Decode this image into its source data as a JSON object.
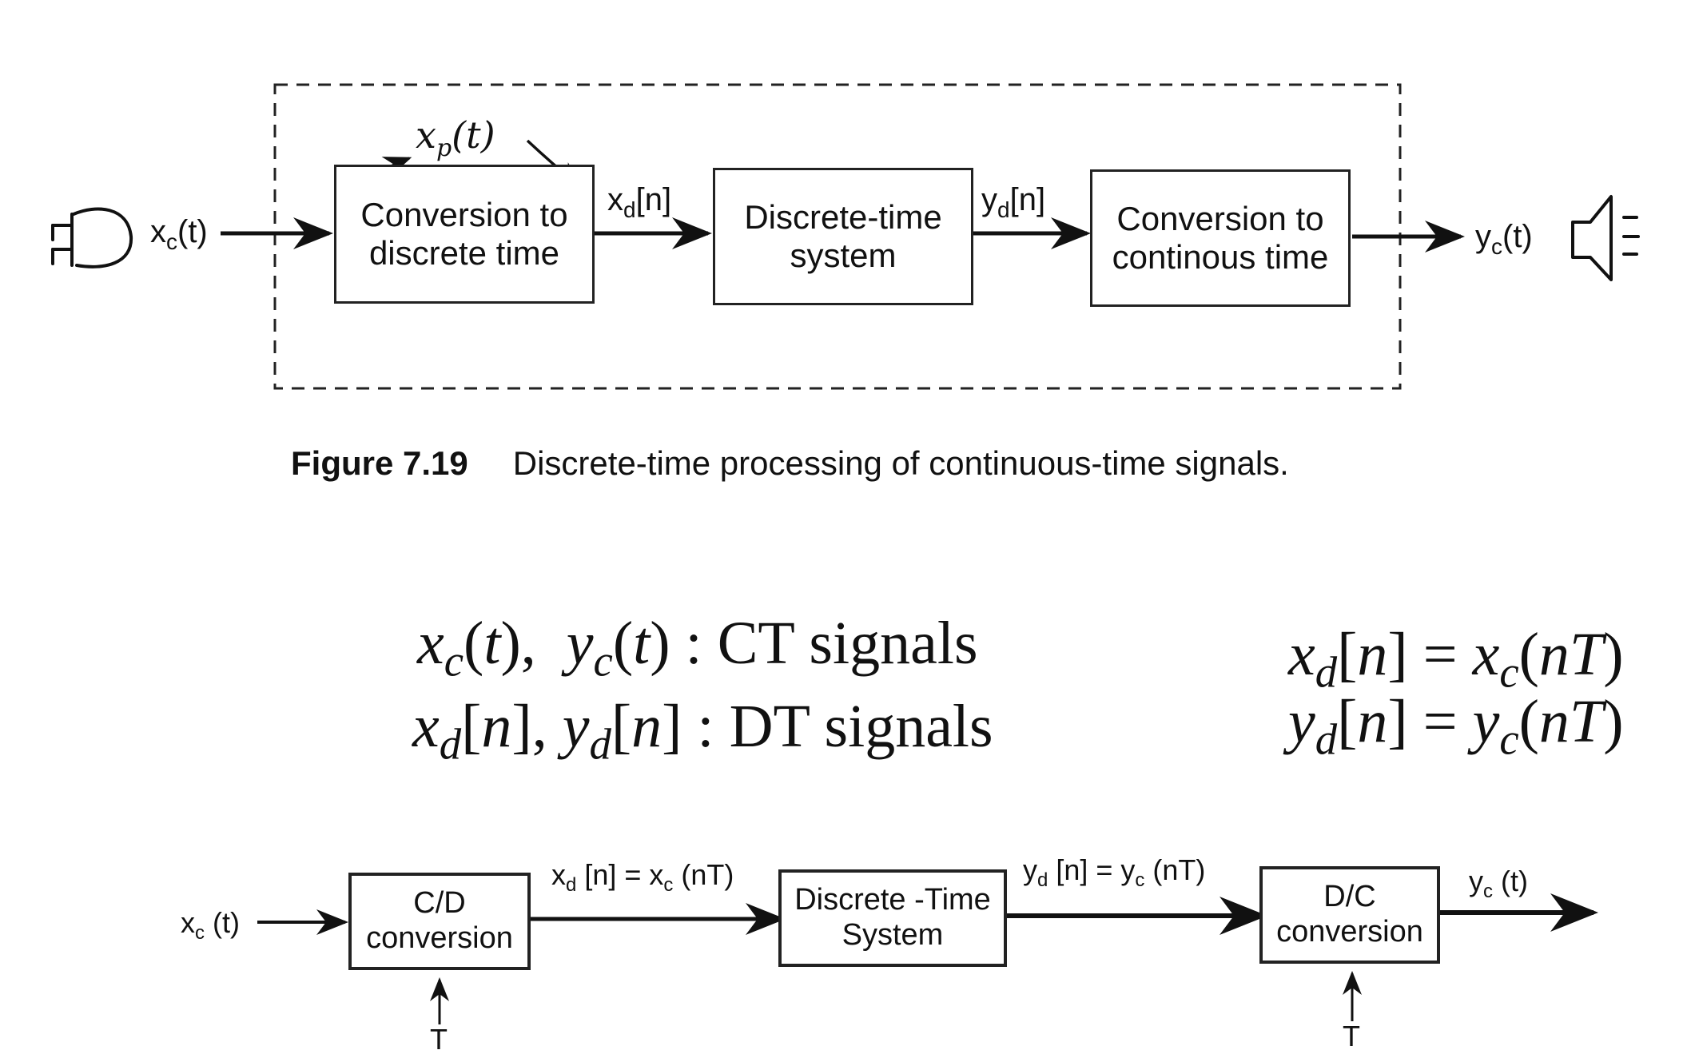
{
  "figure1": {
    "blocks": [
      {
        "line1": "Conversion to",
        "line2": "discrete time"
      },
      {
        "line1": "Discrete-time",
        "line2": "system"
      },
      {
        "line1": "Conversion to",
        "line2": "continous time"
      }
    ],
    "input_label": {
      "base": "x",
      "sub": "c",
      "rest": "(t)"
    },
    "xd_label": {
      "base": "x",
      "sub": "d",
      "rest": "[n]"
    },
    "yd_label": {
      "base": "y",
      "sub": "d",
      "rest": "[n]"
    },
    "output_label": {
      "base": "y",
      "sub": "c",
      "rest": "(t)"
    },
    "handwritten": {
      "base": "x",
      "sub": "p",
      "rest": "(t)"
    },
    "caption_number": "Figure 7.19",
    "caption_text": "Discrete-time processing of continuous-time signals."
  },
  "equations": {
    "ct_signals": "CT signals",
    "dt_signals": "DT signals",
    "t": "t",
    "n": "n",
    "nT": "nT"
  },
  "figure2": {
    "blocks": [
      {
        "line1": "C/D",
        "line2": "conversion"
      },
      {
        "line1": "Discrete -Time",
        "line2": "System"
      },
      {
        "line1": "D/C",
        "line2": "conversion"
      }
    ],
    "input_label": "xc (t)",
    "input": {
      "base": "x",
      "sub": "c",
      "rest": " (t)"
    },
    "xd_eq": {
      "a": "x",
      "as": "d",
      "b": " [n] = x",
      "bs": "c",
      "c": " (nT)"
    },
    "yd_eq": {
      "a": "y",
      "as": "d",
      "b": " [n] = y",
      "bs": "c",
      "c": " (nT)"
    },
    "output": {
      "base": "y",
      "sub": "c",
      "rest": " (t)"
    },
    "sampling_label_1": "T",
    "sampling_label_2": "T"
  }
}
